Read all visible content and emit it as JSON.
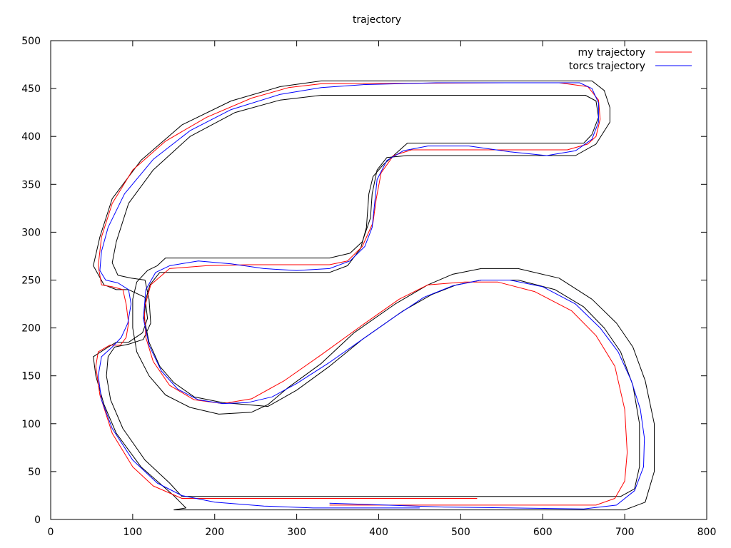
{
  "chart_data": {
    "type": "line",
    "title": "trajectory",
    "xlabel": "",
    "ylabel": "",
    "xlim": [
      0,
      800
    ],
    "ylim": [
      0,
      500
    ],
    "xticks": [
      0,
      100,
      200,
      300,
      400,
      500,
      600,
      700,
      800
    ],
    "yticks": [
      0,
      50,
      100,
      150,
      200,
      250,
      300,
      350,
      400,
      450,
      500
    ],
    "grid": false,
    "legend_position": "top-right",
    "colors": {
      "track": "#000000",
      "my": "#ff0000",
      "torcs": "#0000ff"
    },
    "series": [
      {
        "name": "",
        "color": "#000000",
        "points": [
          [
            150,
            10
          ],
          [
            430,
            10
          ],
          [
            700,
            10
          ],
          [
            725,
            18
          ],
          [
            736,
            50
          ],
          [
            736,
            100
          ],
          [
            725,
            145
          ],
          [
            710,
            180
          ],
          [
            690,
            205
          ],
          [
            660,
            230
          ],
          [
            620,
            252
          ],
          [
            570,
            262
          ],
          [
            525,
            262
          ],
          [
            490,
            256
          ],
          [
            460,
            245
          ],
          [
            420,
            225
          ],
          [
            370,
            195
          ],
          [
            330,
            163
          ],
          [
            290,
            138
          ],
          [
            265,
            120
          ],
          [
            245,
            112
          ],
          [
            205,
            110
          ],
          [
            170,
            117
          ],
          [
            140,
            130
          ],
          [
            120,
            150
          ],
          [
            105,
            175
          ],
          [
            100,
            200
          ],
          [
            100,
            230
          ],
          [
            105,
            248
          ],
          [
            118,
            260
          ],
          [
            130,
            265
          ],
          [
            140,
            273
          ],
          [
            340,
            273
          ],
          [
            365,
            278
          ],
          [
            380,
            290
          ],
          [
            390,
            315
          ],
          [
            392,
            340
          ],
          [
            398,
            365
          ],
          [
            410,
            378
          ],
          [
            435,
            380
          ],
          [
            640,
            380
          ],
          [
            665,
            392
          ],
          [
            682,
            415
          ],
          [
            682,
            430
          ],
          [
            675,
            448
          ],
          [
            660,
            458
          ],
          [
            330,
            458
          ],
          [
            280,
            452
          ],
          [
            220,
            437
          ],
          [
            160,
            412
          ],
          [
            110,
            375
          ],
          [
            75,
            335
          ],
          [
            60,
            295
          ],
          [
            52,
            265
          ],
          [
            65,
            245
          ],
          [
            80,
            240
          ],
          [
            95,
            240
          ],
          [
            115,
            232
          ],
          [
            118,
            210
          ],
          [
            112,
            195
          ],
          [
            95,
            185
          ],
          [
            80,
            185
          ],
          [
            70,
            180
          ],
          [
            52,
            170
          ],
          [
            55,
            150
          ],
          [
            65,
            120
          ],
          [
            80,
            90
          ],
          [
            110,
            55
          ],
          [
            150,
            25
          ],
          [
            165,
            12
          ],
          [
            150,
            10
          ]
        ]
      },
      {
        "name": "",
        "color": "#000000",
        "points": [
          [
            160,
            24
          ],
          [
            430,
            24
          ],
          [
            695,
            24
          ],
          [
            712,
            32
          ],
          [
            718,
            55
          ],
          [
            718,
            100
          ],
          [
            710,
            140
          ],
          [
            695,
            175
          ],
          [
            675,
            200
          ],
          [
            650,
            222
          ],
          [
            615,
            240
          ],
          [
            570,
            250
          ],
          [
            525,
            250
          ],
          [
            495,
            245
          ],
          [
            465,
            235
          ],
          [
            430,
            218
          ],
          [
            380,
            188
          ],
          [
            340,
            160
          ],
          [
            300,
            135
          ],
          [
            265,
            118
          ],
          [
            210,
            122
          ],
          [
            175,
            128
          ],
          [
            150,
            143
          ],
          [
            133,
            160
          ],
          [
            120,
            185
          ],
          [
            114,
            210
          ],
          [
            116,
            230
          ],
          [
            121,
            245
          ],
          [
            133,
            258
          ],
          [
            340,
            258
          ],
          [
            362,
            265
          ],
          [
            378,
            283
          ],
          [
            385,
            305
          ],
          [
            388,
            340
          ],
          [
            393,
            358
          ],
          [
            405,
            370
          ],
          [
            435,
            393
          ],
          [
            650,
            393
          ],
          [
            660,
            402
          ],
          [
            668,
            420
          ],
          [
            665,
            437
          ],
          [
            652,
            443
          ],
          [
            330,
            443
          ],
          [
            280,
            438
          ],
          [
            225,
            425
          ],
          [
            170,
            400
          ],
          [
            125,
            365
          ],
          [
            95,
            330
          ],
          [
            80,
            290
          ],
          [
            75,
            268
          ],
          [
            82,
            255
          ],
          [
            98,
            252
          ],
          [
            115,
            250
          ],
          [
            120,
            230
          ],
          [
            122,
            205
          ],
          [
            113,
            188
          ],
          [
            95,
            183
          ],
          [
            78,
            180
          ],
          [
            70,
            170
          ],
          [
            68,
            150
          ],
          [
            73,
            125
          ],
          [
            88,
            95
          ],
          [
            115,
            62
          ],
          [
            145,
            38
          ],
          [
            160,
            24
          ]
        ]
      },
      {
        "name": "my trajectory",
        "color": "#ff0000",
        "points": [
          [
            520,
            22
          ],
          [
            160,
            22
          ],
          [
            125,
            35
          ],
          [
            100,
            55
          ],
          [
            75,
            90
          ],
          [
            60,
            130
          ],
          [
            55,
            160
          ],
          [
            58,
            175
          ],
          [
            72,
            182
          ],
          [
            85,
            182
          ],
          [
            92,
            190
          ],
          [
            95,
            205
          ],
          [
            92,
            225
          ],
          [
            88,
            240
          ],
          [
            75,
            243
          ],
          [
            62,
            245
          ],
          [
            58,
            265
          ],
          [
            62,
            295
          ],
          [
            75,
            330
          ],
          [
            100,
            365
          ],
          [
            140,
            395
          ],
          [
            190,
            420
          ],
          [
            245,
            440
          ],
          [
            290,
            451
          ],
          [
            330,
            455
          ],
          [
            555,
            456
          ],
          [
            620,
            456
          ],
          [
            655,
            452
          ],
          [
            668,
            438
          ],
          [
            670,
            418
          ],
          [
            665,
            400
          ],
          [
            655,
            392
          ],
          [
            630,
            386
          ],
          [
            440,
            386
          ],
          [
            418,
            380
          ],
          [
            403,
            362
          ],
          [
            397,
            335
          ],
          [
            393,
            310
          ],
          [
            380,
            285
          ],
          [
            362,
            270
          ],
          [
            340,
            266
          ],
          [
            300,
            266
          ],
          [
            240,
            266
          ],
          [
            190,
            265
          ],
          [
            145,
            262
          ],
          [
            122,
            245
          ],
          [
            114,
            220
          ],
          [
            116,
            190
          ],
          [
            125,
            165
          ],
          [
            145,
            140
          ],
          [
            175,
            125
          ],
          [
            210,
            121
          ],
          [
            245,
            126
          ],
          [
            285,
            145
          ],
          [
            330,
            172
          ],
          [
            380,
            203
          ],
          [
            425,
            230
          ],
          [
            460,
            245
          ],
          [
            505,
            248
          ],
          [
            545,
            248
          ],
          [
            590,
            238
          ],
          [
            635,
            218
          ],
          [
            665,
            192
          ],
          [
            688,
            160
          ],
          [
            700,
            115
          ],
          [
            703,
            70
          ],
          [
            700,
            40
          ],
          [
            688,
            22
          ],
          [
            665,
            15
          ],
          [
            340,
            15
          ]
        ]
      },
      {
        "name": "torcs trajectory",
        "color": "#0000ff",
        "points": [
          [
            340,
            17
          ],
          [
            480,
            13
          ],
          [
            650,
            11
          ],
          [
            690,
            15
          ],
          [
            712,
            30
          ],
          [
            723,
            55
          ],
          [
            724,
            85
          ],
          [
            719,
            115
          ],
          [
            708,
            145
          ],
          [
            692,
            175
          ],
          [
            670,
            200
          ],
          [
            640,
            225
          ],
          [
            600,
            243
          ],
          [
            560,
            250
          ],
          [
            525,
            250
          ],
          [
            490,
            244
          ],
          [
            455,
            232
          ],
          [
            420,
            212
          ],
          [
            380,
            188
          ],
          [
            340,
            164
          ],
          [
            300,
            142
          ],
          [
            270,
            128
          ],
          [
            240,
            122
          ],
          [
            210,
            121
          ],
          [
            180,
            125
          ],
          [
            155,
            136
          ],
          [
            135,
            155
          ],
          [
            120,
            182
          ],
          [
            113,
            210
          ],
          [
            116,
            240
          ],
          [
            128,
            258
          ],
          [
            145,
            265
          ],
          [
            180,
            270
          ],
          [
            220,
            267
          ],
          [
            260,
            262
          ],
          [
            300,
            260
          ],
          [
            340,
            262
          ],
          [
            365,
            270
          ],
          [
            383,
            285
          ],
          [
            392,
            305
          ],
          [
            395,
            330
          ],
          [
            398,
            355
          ],
          [
            410,
            375
          ],
          [
            430,
            385
          ],
          [
            460,
            390
          ],
          [
            510,
            390
          ],
          [
            560,
            384
          ],
          [
            605,
            380
          ],
          [
            640,
            385
          ],
          [
            660,
            397
          ],
          [
            668,
            415
          ],
          [
            668,
            435
          ],
          [
            660,
            450
          ],
          [
            645,
            456
          ],
          [
            555,
            456
          ],
          [
            470,
            456
          ],
          [
            380,
            454
          ],
          [
            330,
            451
          ],
          [
            280,
            444
          ],
          [
            220,
            428
          ],
          [
            170,
            406
          ],
          [
            125,
            376
          ],
          [
            90,
            340
          ],
          [
            70,
            305
          ],
          [
            62,
            280
          ],
          [
            60,
            260
          ],
          [
            67,
            250
          ],
          [
            82,
            247
          ],
          [
            95,
            240
          ],
          [
            98,
            225
          ],
          [
            94,
            205
          ],
          [
            86,
            190
          ],
          [
            75,
            180
          ],
          [
            62,
            170
          ],
          [
            58,
            150
          ],
          [
            62,
            125
          ],
          [
            75,
            95
          ],
          [
            100,
            62
          ],
          [
            130,
            38
          ],
          [
            160,
            25
          ],
          [
            200,
            18
          ],
          [
            260,
            14
          ],
          [
            320,
            12
          ],
          [
            380,
            12
          ],
          [
            450,
            12
          ]
        ]
      }
    ]
  }
}
